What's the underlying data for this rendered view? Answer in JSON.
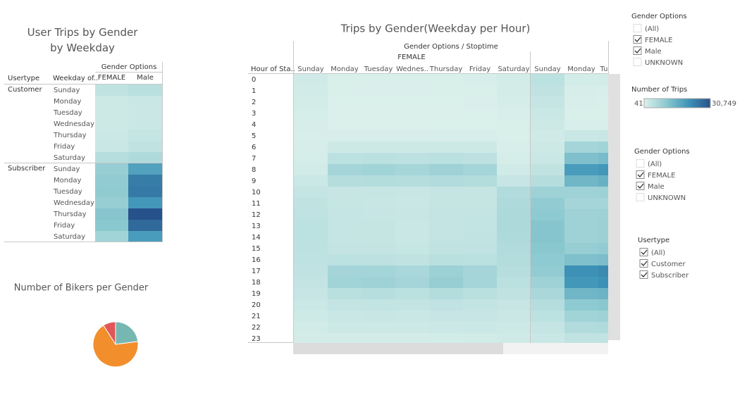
{
  "chart_data": [
    {
      "type": "heatmap",
      "title": "User Trips by Gender by Weekday",
      "column_group": "Gender Options",
      "row_headers": [
        "Usertype",
        "Weekday of.."
      ],
      "columns": [
        "FEMALE",
        "Male"
      ],
      "groups": [
        {
          "name": "Customer",
          "rows": [
            "Sunday",
            "Monday",
            "Tuesday",
            "Wednesday",
            "Thursday",
            "Friday",
            "Saturday"
          ],
          "values": [
            [
              3500,
              4500
            ],
            [
              2000,
              2500
            ],
            [
              1800,
              2300
            ],
            [
              1900,
              2400
            ],
            [
              2100,
              3000
            ],
            [
              2500,
              3500
            ],
            [
              4800,
              5800
            ]
          ]
        },
        {
          "name": "Subscriber",
          "rows": [
            "Sunday",
            "Monday",
            "Tuesday",
            "Wednesday",
            "Thursday",
            "Friday",
            "Saturday"
          ],
          "values": [
            [
              9000,
              18000
            ],
            [
              9500,
              24000
            ],
            [
              9800,
              24500
            ],
            [
              9000,
              20000
            ],
            [
              11000,
              30749
            ],
            [
              10500,
              27000
            ],
            [
              7500,
              19000
            ]
          ]
        }
      ]
    },
    {
      "type": "heatmap",
      "title": "Trips by Gender(Weekday per Hour)",
      "column_header": "Gender Options / Stoptime",
      "column_group": "FEMALE",
      "row_header": "Hour of Sta..",
      "categories": [
        "0",
        "1",
        "2",
        "3",
        "4",
        "5",
        "6",
        "7",
        "8",
        "9",
        "10",
        "11",
        "12",
        "13",
        "14",
        "15",
        "16",
        "17",
        "18",
        "19",
        "20",
        "21",
        "22",
        "23"
      ],
      "series": [
        {
          "name": "Sunday",
          "values": [
            1500,
            1300,
            1100,
            900,
            700,
            600,
            700,
            900,
            1300,
            2200,
            3000,
            3500,
            3800,
            4000,
            4000,
            3900,
            3800,
            3600,
            3200,
            2800,
            2200,
            1700,
            1400,
            1000
          ]
        },
        {
          "name": "Monday",
          "values": [
            400,
            250,
            150,
            100,
            100,
            500,
            1800,
            4000,
            7000,
            5000,
            2800,
            2700,
            3000,
            3000,
            3000,
            3200,
            4000,
            7000,
            7500,
            4500,
            3200,
            2500,
            1800,
            1000
          ]
        },
        {
          "name": "Tuesday",
          "values": [
            350,
            200,
            130,
            90,
            100,
            550,
            1900,
            4200,
            7500,
            5200,
            2700,
            2600,
            2800,
            2900,
            2900,
            3100,
            4100,
            7200,
            7800,
            4700,
            3300,
            2600,
            1900,
            1000
          ]
        },
        {
          "name": "Wednes..",
          "values": [
            400,
            230,
            140,
            100,
            100,
            500,
            1800,
            3900,
            6800,
            5000,
            2600,
            2500,
            2600,
            2500,
            2500,
            2700,
            3500,
            6500,
            7000,
            4300,
            3100,
            2400,
            1800,
            1000
          ]
        },
        {
          "name": "Thursday",
          "values": [
            420,
            250,
            150,
            100,
            110,
            550,
            2000,
            4300,
            8000,
            5500,
            3000,
            2900,
            3100,
            3100,
            3200,
            3500,
            4500,
            8200,
            9000,
            5200,
            3600,
            2800,
            2100,
            1200
          ]
        },
        {
          "name": "Friday",
          "values": [
            500,
            300,
            180,
            120,
            110,
            520,
            1900,
            4100,
            7200,
            5200,
            3000,
            2900,
            3200,
            3300,
            3400,
            3600,
            4300,
            7000,
            7200,
            4500,
            3300,
            2800,
            2200,
            1400
          ]
        },
        {
          "name": "Saturday",
          "values": [
            1200,
            1000,
            800,
            600,
            400,
            300,
            500,
            900,
            1500,
            2800,
            5500,
            5800,
            6000,
            6000,
            5800,
            5500,
            5200,
            4800,
            4200,
            3500,
            2800,
            2300,
            1900,
            1500
          ]
        },
        {
          "name": "Sunday",
          "values": [
            4000,
            3500,
            3000,
            2500,
            1800,
            1500,
            1800,
            2500,
            3500,
            5000,
            8000,
            9500,
            10000,
            11000,
            11000,
            10500,
            10000,
            9500,
            8000,
            6500,
            5000,
            4000,
            3000,
            2500
          ]
        },
        {
          "name": "Monday",
          "values": [
            1200,
            700,
            500,
            400,
            500,
            2500,
            7000,
            12000,
            19000,
            14000,
            8000,
            7000,
            8000,
            8000,
            8000,
            9000,
            12000,
            21000,
            20000,
            14000,
            10000,
            7500,
            5500,
            3500
          ]
        },
        {
          "name": "Tu",
          "values": [
            1000,
            600,
            400,
            350,
            500,
            2600,
            7500,
            13000,
            20000,
            15000,
            8200,
            7200,
            8200,
            8300,
            8300,
            9500,
            12500,
            22000,
            21000,
            14500,
            10500,
            7800,
            5600,
            3400
          ]
        }
      ]
    },
    {
      "type": "pie",
      "title": "Number of Bikers per Gender",
      "values": [
        23,
        68,
        9
      ],
      "colors": [
        "#76b7b2",
        "#f28e2b",
        "#e15759"
      ]
    }
  ],
  "color_scale": {
    "title": "Number of Trips",
    "min": {
      "value": 41,
      "label": "41"
    },
    "max": {
      "value": 30749,
      "label": "30,749"
    },
    "colors": [
      "#dbf0eb",
      "#8cc9d0",
      "#3f94b8",
      "#26518a"
    ]
  },
  "filters": [
    {
      "title": "Gender Options",
      "options": [
        {
          "label": "(All)",
          "checked": false
        },
        {
          "label": "FEMALE",
          "checked": true
        },
        {
          "label": "Male",
          "checked": true
        },
        {
          "label": "UNKNOWN",
          "checked": false
        }
      ]
    },
    {
      "title": "Gender Options",
      "options": [
        {
          "label": "(All)",
          "checked": false
        },
        {
          "label": "FEMALE",
          "checked": true
        },
        {
          "label": "Male",
          "checked": true
        },
        {
          "label": "UNKNOWN",
          "checked": false
        }
      ]
    },
    {
      "title": "Usertype",
      "options": [
        {
          "label": "(All)",
          "checked": true
        },
        {
          "label": "Customer",
          "checked": true
        },
        {
          "label": "Subscriber",
          "checked": true
        }
      ]
    }
  ]
}
